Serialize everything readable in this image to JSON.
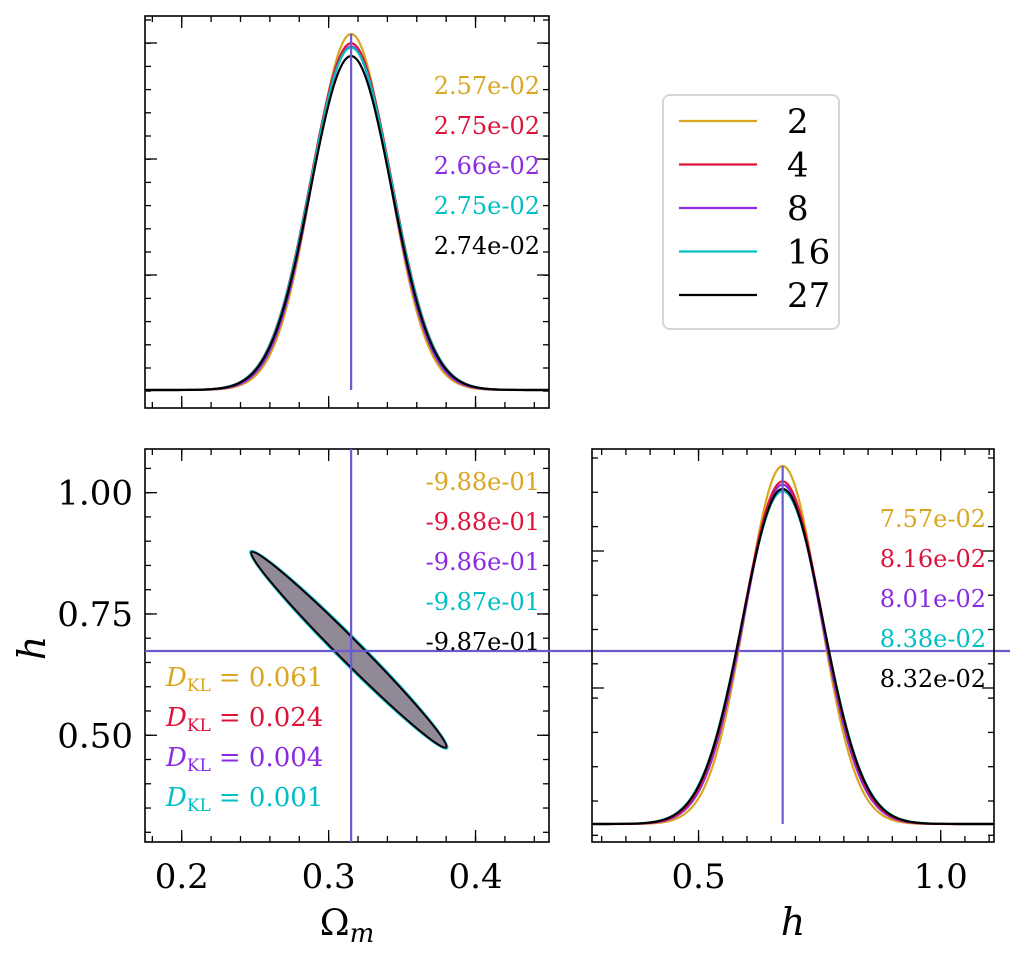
{
  "chart_data": {
    "type": "corner",
    "parameters": [
      {
        "name": "Omega_m",
        "label": "Ω",
        "label_sub": "m",
        "truth": 0.3153
      },
      {
        "name": "h",
        "label": "h",
        "label_sub": "",
        "truth": 0.6736
      }
    ],
    "series": [
      {
        "name": "2",
        "color": "#DAA520"
      },
      {
        "name": "4",
        "color": "#DC143C"
      },
      {
        "name": "8",
        "color": "#8A2BE2"
      },
      {
        "name": "16",
        "color": "#00BFC4"
      },
      {
        "name": "27",
        "color": "#000000"
      }
    ],
    "truth_color": "#6A5ACD",
    "legend_position": "upper-right",
    "panels": {
      "omega_m_marginal": {
        "type": "line",
        "xlim": [
          0.175,
          0.45
        ],
        "ylim": [
          0,
          1.07
        ],
        "mean": 0.3153,
        "peak_heights": [
          1.0,
          0.974,
          0.965,
          0.962,
          0.938
        ],
        "annotations": [
          "2.57e-02",
          "2.75e-02",
          "2.66e-02",
          "2.75e-02",
          "2.74e-02"
        ]
      },
      "joint": {
        "type": "contour",
        "xlim": [
          0.175,
          0.45
        ],
        "ylim": [
          0.28,
          1.09
        ],
        "xticks": [
          0.2,
          0.3,
          0.4
        ],
        "xtick_labels": [
          "0.2",
          "0.3",
          "0.4"
        ],
        "yticks": [
          0.5,
          0.75,
          1.0
        ],
        "ytick_labels": [
          "0.50",
          "0.75",
          "1.00"
        ],
        "ellipse_center": [
          0.3137,
          0.6772
        ],
        "ellipse_endpoints": [
          [
            0.2475,
            0.8775
          ],
          [
            0.38,
            0.475
          ]
        ],
        "ellipse_half_width": 0.0068,
        "fill_color": "#8F8A96",
        "correlations": [
          "-9.88e-01",
          "-9.88e-01",
          "-9.86e-01",
          "-9.87e-01",
          "-9.87e-01"
        ],
        "kl": [
          {
            "label": "D",
            "sub": "KL",
            "value": "= 0.061"
          },
          {
            "label": "D",
            "sub": "KL",
            "value": "= 0.024"
          },
          {
            "label": "D",
            "sub": "KL",
            "value": "= 0.004"
          },
          {
            "label": "D",
            "sub": "KL",
            "value": "= 0.001"
          }
        ]
      },
      "h_marginal": {
        "type": "line",
        "xlim": [
          0.28,
          1.11
        ],
        "ylim": [
          0,
          1.07
        ],
        "xticks": [
          0.5,
          1.0
        ],
        "xtick_labels": [
          "0.5",
          "1.0"
        ],
        "mean": 0.6736,
        "peak_heights": [
          1.0,
          0.957,
          0.948,
          0.93,
          0.936
        ],
        "annotations": [
          "7.57e-02",
          "8.16e-02",
          "8.01e-02",
          "8.38e-02",
          "8.32e-02"
        ]
      }
    }
  }
}
